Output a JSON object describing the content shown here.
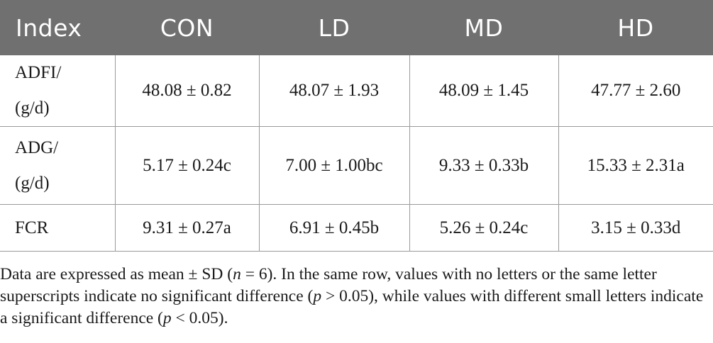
{
  "table": {
    "headers": [
      "Index",
      "CON",
      "LD",
      "MD",
      "HD"
    ],
    "rows": [
      {
        "label_line1": "ADFI/",
        "label_line2": "(g/d)",
        "values": [
          "48.08 ± 0.82",
          "48.07 ± 1.93",
          "48.09 ± 1.45",
          "47.77 ± 2.60"
        ]
      },
      {
        "label_line1": "ADG/",
        "label_line2": "(g/d)",
        "values": [
          "5.17 ± 0.24c",
          "7.00 ± 1.00bc",
          "9.33 ± 0.33b",
          "15.33 ± 2.31a"
        ]
      },
      {
        "label_line1": "FCR",
        "label_line2": "",
        "values": [
          "9.31 ± 0.27a",
          "6.91 ± 0.45b",
          "5.26 ± 0.24c",
          "3.15 ± 0.33d"
        ]
      }
    ]
  },
  "footnote": {
    "p1": "Data are expressed as mean ± SD (",
    "n_var": "n",
    "p2": " = 6). In the same row, values with no letters or the same letter superscripts indicate no significant difference (",
    "p_var1": "p",
    "p3": " > 0.05), while values with different small letters indicate a significant difference (",
    "p_var2": "p",
    "p4": " < 0.05)."
  }
}
